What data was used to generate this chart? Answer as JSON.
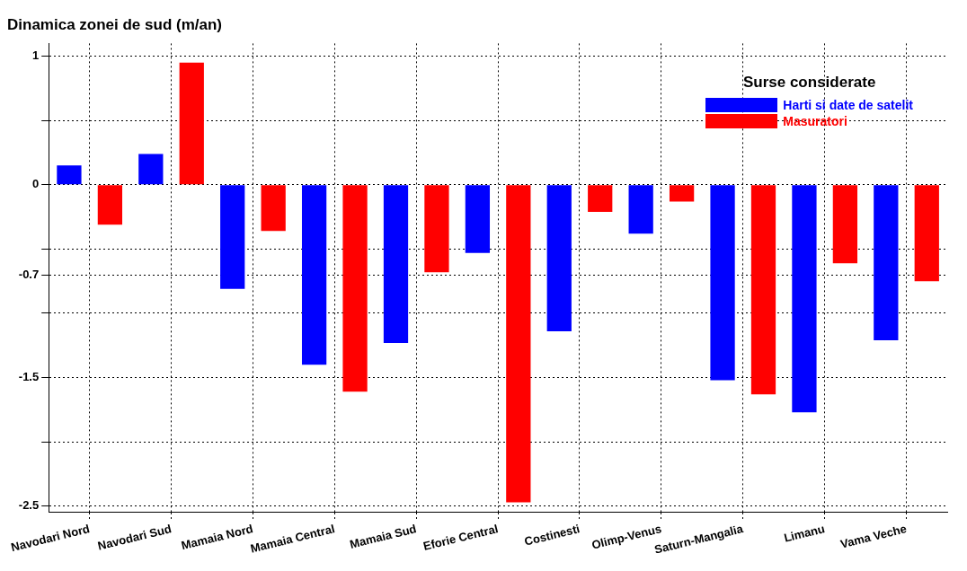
{
  "chart_data": {
    "type": "bar",
    "title": "Dinamica zonei de sud (m/an)",
    "legend_title": "Surse considerate",
    "categories": [
      "Navodari Nord",
      "Navodari Sud",
      "Mamaia Nord",
      "Mamaia Central",
      "Mamaia Sud",
      "Eforie Central",
      "Costinesti",
      "Olimp-Venus",
      "Saturn-Mangalia",
      "Limanu",
      "Vama Veche"
    ],
    "series": [
      {
        "name": "Harti si date de satelit",
        "color": "#0000ff",
        "values": [
          0.15,
          0.24,
          -0.81,
          -1.4,
          -1.23,
          -0.53,
          -1.14,
          -0.38,
          -1.52,
          -1.77,
          -1.21
        ]
      },
      {
        "name": "Masuratori",
        "color": "#ff0000",
        "values": [
          -0.31,
          0.95,
          -0.36,
          -1.61,
          -0.68,
          -2.47,
          -0.21,
          -0.13,
          -1.63,
          -0.61,
          -0.75
        ]
      }
    ],
    "ylim": [
      -2.55,
      1.1
    ],
    "yticks": [
      1,
      {
        "value": 0.5,
        "label": null
      },
      0,
      {
        "value": -0.5,
        "label": null
      },
      -0.7,
      {
        "value": -1,
        "label": null
      },
      -1.5,
      {
        "value": -2,
        "label": null
      },
      -2.5
    ],
    "grid": true,
    "legend": "top right"
  }
}
